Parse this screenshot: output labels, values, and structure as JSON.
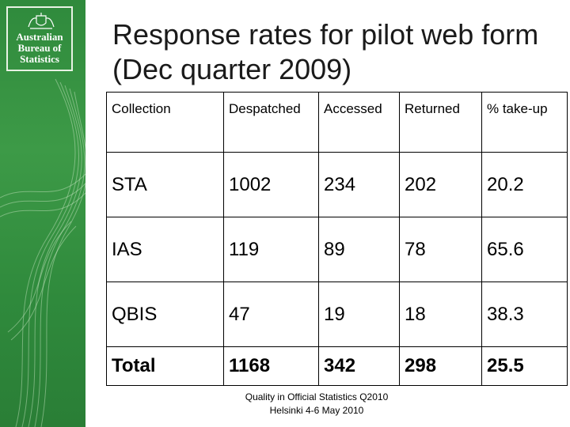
{
  "colors": {
    "sidebar": "#2f8a3c",
    "logo_text": "#ffffff"
  },
  "logo": {
    "icon": "coat-of-arms-icon",
    "line1": "Australian",
    "line2": "Bureau of",
    "line3": "Statistics"
  },
  "title": "Response rates for pilot web form (Dec quarter 2009)",
  "table": {
    "headers": [
      "Collection",
      "Despatched",
      "Accessed",
      "Returned",
      "% take-up"
    ],
    "rows": [
      [
        "STA",
        "1002",
        "234",
        "202",
        "20.2"
      ],
      [
        "IAS",
        "119",
        "89",
        "78",
        "65.6"
      ],
      [
        "QBIS",
        "47",
        "19",
        "18",
        "38.3"
      ]
    ],
    "total": [
      "Total",
      "1168",
      "342",
      "298",
      "25.5"
    ]
  },
  "footer": {
    "line1": "Quality in Official Statistics Q2010",
    "line2": "Helsinki 4-6 May 2010"
  }
}
